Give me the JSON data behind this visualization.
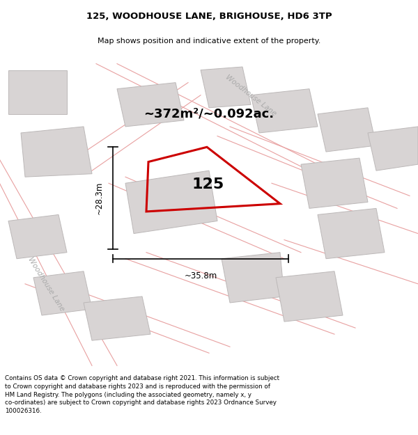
{
  "title": "125, WOODHOUSE LANE, BRIGHOUSE, HD6 3TP",
  "subtitle": "Map shows position and indicative extent of the property.",
  "footer": "Contains OS data © Crown copyright and database right 2021. This information is subject to Crown copyright and database rights 2023 and is reproduced with the permission of HM Land Registry. The polygons (including the associated geometry, namely x, y co-ordinates) are subject to Crown copyright and database rights 2023 Ordnance Survey 100026316.",
  "area_label": "~372m²/~0.092ac.",
  "number_label": "125",
  "dim_width": "~35.8m",
  "dim_height": "~28.3m",
  "map_bg": "#f5f2f2",
  "property_color": "#cc0000",
  "road_color": "#e8a0a0",
  "block_fill": "#d8d4d4",
  "block_edge": "#bcb8b8",
  "title_fontsize": 9.5,
  "subtitle_fontsize": 8.0,
  "footer_fontsize": 6.3,
  "label_color": "#aaaaaa",
  "woodhouse_lane_label_top": "Woodhouse Lane",
  "woodhouse_lane_label_left": "Woodhouse Lane"
}
